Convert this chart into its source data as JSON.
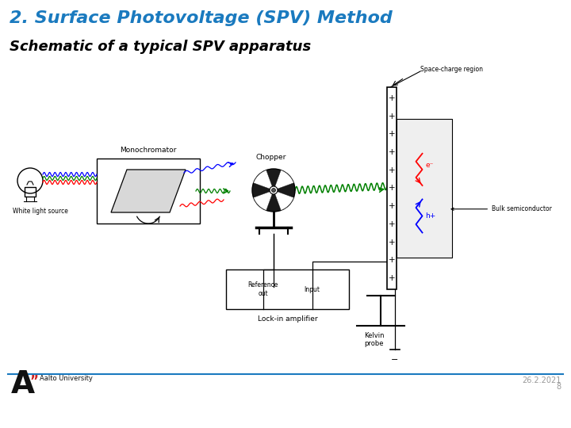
{
  "title": "2. Surface Photovoltage (SPV) Method",
  "subtitle": "Schematic of a typical SPV apparatus",
  "title_color": "#1a7abf",
  "subtitle_color": "#000000",
  "title_fontsize": 16,
  "subtitle_fontsize": 13,
  "background_color": "#ffffff",
  "footer_line_color": "#1a7abf",
  "footer_date": "26.2.2021",
  "footer_page": "8",
  "footer_fontsize": 7,
  "aalto_A_color": "#111111",
  "aalto_quotes_color": "#CC2222",
  "aalto_text_color": "#111111"
}
